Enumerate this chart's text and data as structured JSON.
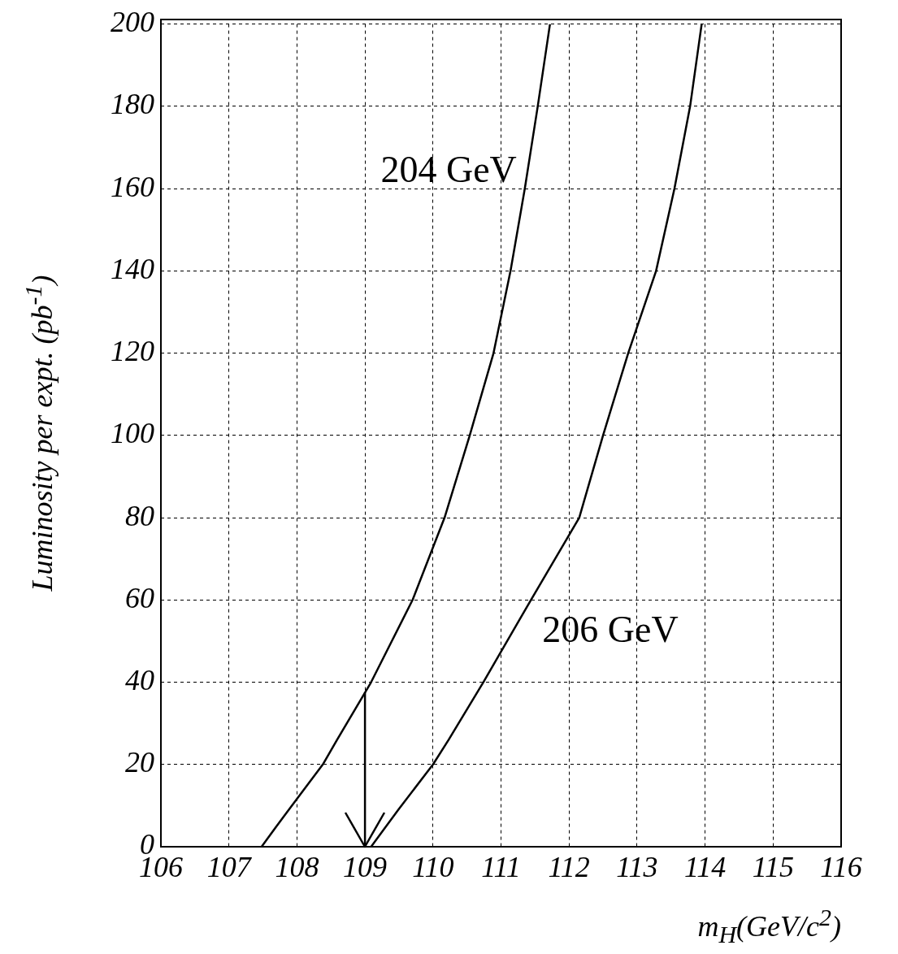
{
  "chart_data": {
    "type": "line",
    "xlabel": "m$_{H}$(GeV/c$^{2}$)",
    "ylabel": "Luminosity per expt. (pb$^{-1}$)",
    "xlim": [
      106,
      116
    ],
    "xticks": [
      106,
      107,
      108,
      109,
      110,
      111,
      112,
      113,
      114,
      115,
      116
    ],
    "ylim": [
      0,
      200
    ],
    "yticks": [
      0,
      20,
      40,
      60,
      80,
      100,
      120,
      140,
      160,
      180,
      200
    ],
    "grid": true,
    "legend": false,
    "marker": "none",
    "line_style": "solid",
    "series": [
      {
        "name": "204 GeV",
        "color": "#000000",
        "x": [
          107.48,
          107.7,
          107.88,
          108.38,
          108.59,
          109.09,
          109.7,
          110.17,
          110.54,
          110.89,
          111.14,
          111.35,
          111.54,
          111.72
        ],
        "values": [
          0,
          5,
          9,
          20,
          26,
          40,
          60,
          80,
          100,
          120,
          140,
          160,
          180,
          200
        ]
      },
      {
        "name": "206 GeV",
        "color": "#000000",
        "x": [
          109.09,
          109.49,
          110.0,
          110.23,
          110.74,
          111.44,
          112.15,
          112.5,
          112.87,
          113.28,
          113.55,
          113.78,
          113.95
        ],
        "values": [
          0,
          9,
          20,
          26,
          40,
          60,
          80,
          100,
          120,
          140,
          160,
          180,
          200
        ]
      }
    ],
    "ref_lines": [
      {
        "axis": "x",
        "value": 109,
        "color": "#000000"
      }
    ]
  }
}
